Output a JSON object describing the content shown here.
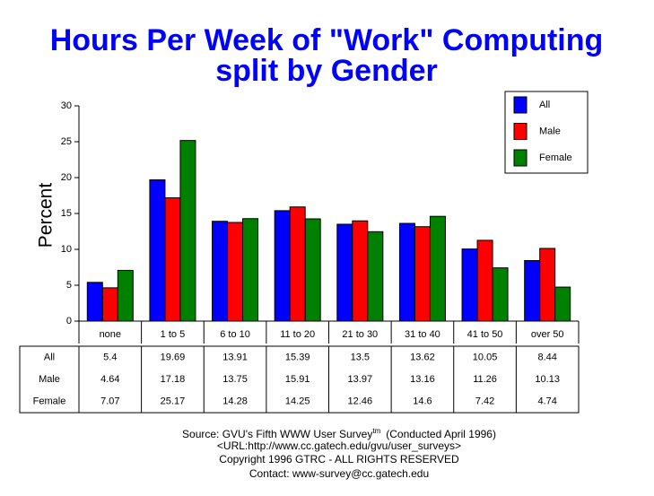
{
  "chart_data": {
    "type": "bar",
    "title": [
      "Hours Per Week of \"Work\" Computing",
      "split by Gender"
    ],
    "y_label": "Percent",
    "categories": [
      "none",
      "1 to 5",
      "6 to 10",
      "11 to 20",
      "21 to 30",
      "31 to 40",
      "41 to 50",
      "over 50"
    ],
    "series": [
      {
        "name": "All",
        "color": "#0000ff",
        "values": [
          5.4,
          19.69,
          13.91,
          15.39,
          13.5,
          13.62,
          10.05,
          8.44
        ]
      },
      {
        "name": "Male",
        "color": "#ff0000",
        "values": [
          4.64,
          17.18,
          13.75,
          15.91,
          13.97,
          13.16,
          11.26,
          10.13
        ]
      },
      {
        "name": "Female",
        "color": "#008000",
        "values": [
          7.07,
          25.17,
          14.28,
          14.25,
          12.46,
          14.6,
          7.42,
          4.74
        ]
      }
    ],
    "ylim": [
      0,
      30
    ],
    "yticks": [
      0,
      5,
      10,
      15,
      20,
      25,
      30
    ],
    "legend": "top-right",
    "data_table": true,
    "footer": {
      "source": "Source: GVU's Fifth WWW User Survey",
      "source_superscript": "tm",
      "conducted": "(Conducted April 1996)",
      "url": "<URL:http://www.cc.gatech.edu/gvu/user_surveys>",
      "copyright": "Copyright 1996 GTRC -  ALL RIGHTS RESERVED",
      "contact": "Contact: www-survey@cc.gatech.edu"
    }
  }
}
